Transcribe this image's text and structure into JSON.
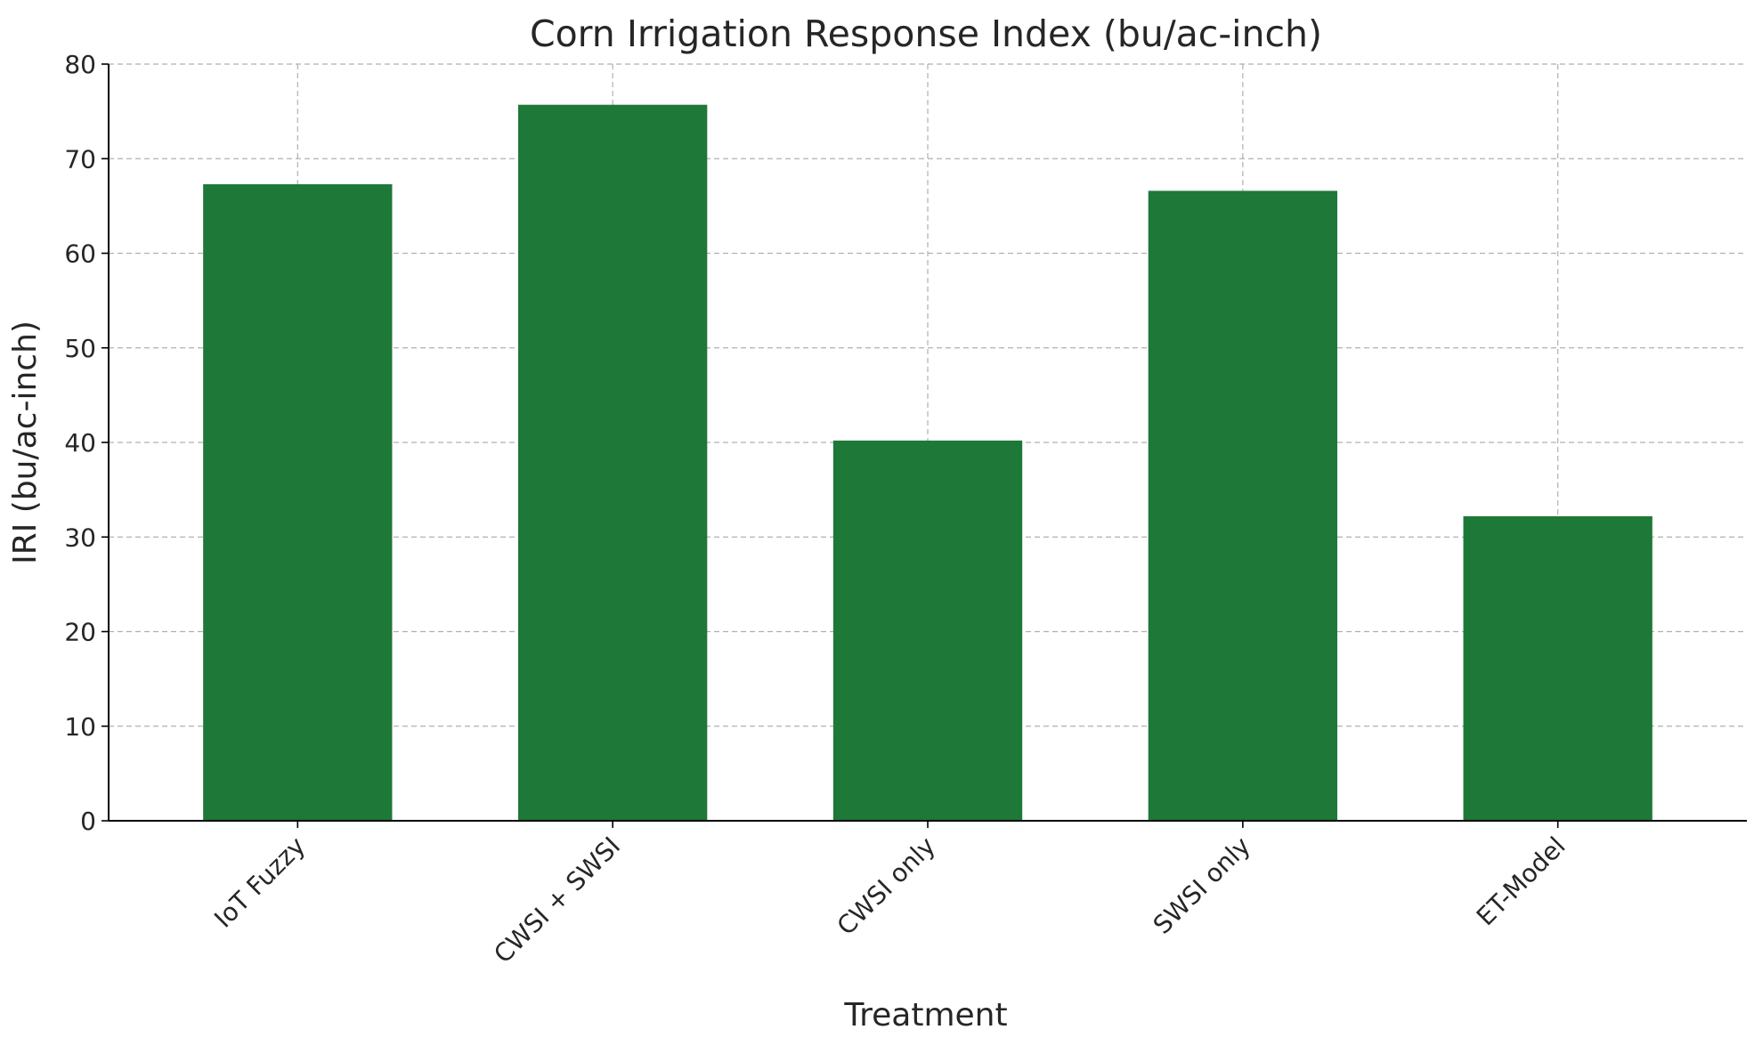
{
  "chart_data": {
    "type": "bar",
    "title": "Corn Irrigation Response Index (bu/ac-inch)",
    "xlabel": "Treatment",
    "ylabel": "IRI (bu/ac-inch)",
    "categories": [
      "IoT Fuzzy",
      "CWSI + SWSI",
      "CWSI only",
      "SWSI only",
      "ET-Model"
    ],
    "values": [
      67.3,
      75.7,
      40.2,
      66.6,
      32.2
    ],
    "ylim": [
      0,
      80
    ],
    "yticks": [
      0,
      10,
      20,
      30,
      40,
      50,
      60,
      70,
      80
    ],
    "grid": true,
    "bar_color": "#1e7838"
  }
}
